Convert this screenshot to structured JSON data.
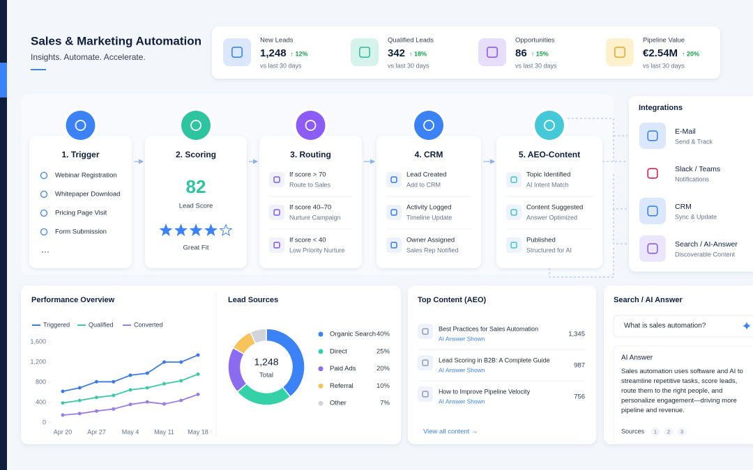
{
  "header": {
    "title": "Sales & Marketing Automation",
    "subtitle": "Insights. Automate. Accelerate."
  },
  "kpis": [
    {
      "label": "New Leads",
      "value": "1,248",
      "change": "↑ 12%",
      "note": "vs last 30 days"
    },
    {
      "label": "Qualified Leads",
      "value": "342",
      "change": "↑ 18%",
      "note": "vs last 30 days"
    },
    {
      "label": "Opportunities",
      "value": "86",
      "change": "↑ 15%",
      "note": "vs last 30 days"
    },
    {
      "label": "Pipeline Value",
      "value": "€2.54M",
      "change": "↑ 20%",
      "note": "vs last 30 days"
    }
  ],
  "pipeline": [
    {
      "title": "1. Trigger",
      "items": [
        "Webinar Registration",
        "Whitepaper Download",
        "Pricing Page Visit",
        "Form Submission"
      ]
    },
    {
      "title": "2. Scoring",
      "score": 82,
      "score_label": "Lead Score",
      "rating": 4,
      "rating_max": 5,
      "verdict": "Great Fit"
    },
    {
      "title": "3. Routing",
      "items": [
        {
          "title": "If score > 70",
          "sub": "Route to Sales"
        },
        {
          "title": "If score 40–70",
          "sub": "Nurture Campaign"
        },
        {
          "title": "If score < 40",
          "sub": "Low Priority Nurture"
        }
      ]
    },
    {
      "title": "4. CRM",
      "items": [
        {
          "title": "Lead Created",
          "sub": "Add to CRM"
        },
        {
          "title": "Activity Logged",
          "sub": "Timeline Update"
        },
        {
          "title": "Owner Assigned",
          "sub": "Sales Rep Notified"
        }
      ]
    },
    {
      "title": "5. AEO-Content",
      "items": [
        {
          "title": "Topic Identified",
          "sub": "AI Intent Match"
        },
        {
          "title": "Content Suggested",
          "sub": "Answer Optimized"
        },
        {
          "title": "Published",
          "sub": "Structured for AI"
        }
      ]
    }
  ],
  "integrations": {
    "title": "Integrations",
    "items": [
      {
        "title": "E-Mail",
        "sub": "Send & Track"
      },
      {
        "title": "Slack / Teams",
        "sub": "Notifications"
      },
      {
        "title": "CRM",
        "sub": "Sync & Update"
      },
      {
        "title": "Search / AI-Answer",
        "sub": "Discoverable Content"
      }
    ]
  },
  "chart_data": [
    {
      "type": "line",
      "title": "Performance Overview",
      "categories": [
        "Apr 20",
        null,
        "Apr 27",
        null,
        "May 4",
        null,
        "May 11",
        null,
        "May 18"
      ],
      "series": [
        {
          "name": "Triggered",
          "color": "#3b7be8",
          "values": [
            620,
            690,
            810,
            810,
            940,
            980,
            1200,
            1200,
            1340
          ]
        },
        {
          "name": "Qualified",
          "color": "#3cc9a8",
          "values": [
            390,
            440,
            500,
            540,
            650,
            690,
            770,
            830,
            960
          ]
        },
        {
          "name": "Converted",
          "color": "#9b7be8",
          "values": [
            150,
            180,
            230,
            270,
            360,
            410,
            370,
            440,
            560
          ]
        }
      ],
      "ylim": [
        0,
        1600
      ],
      "yticks": [
        0,
        400,
        800,
        {
          "value": 1200,
          "label": "1,200"
        },
        {
          "value": 1600,
          "label": "1,600"
        }
      ],
      "grid": false,
      "legend": "top"
    },
    {
      "type": "pie",
      "title": "Lead Sources",
      "donut": true,
      "categories": [
        "Organic Search",
        "Direct",
        "Paid Ads",
        "Referral",
        "Other"
      ],
      "values": [
        40,
        25,
        20,
        10,
        7
      ],
      "value_labels": [
        "40%",
        "25%",
        "20%",
        "10%",
        "7%"
      ],
      "colors": [
        "#3b82f6",
        "#34d1a8",
        "#8b6cf0",
        "#f8c25c",
        "#d1d5db"
      ],
      "center_value": "1,248",
      "center_label": "Total"
    }
  ],
  "top_content": {
    "title": "Top Content (AEO)",
    "items": [
      {
        "title": "Best Practices for Sales Automation",
        "tag": "AI Answer Shown",
        "views": "1,345"
      },
      {
        "title": "Lead Scoring in B2B: A Complete Guide",
        "tag": "AI Answer Shown",
        "views": "987"
      },
      {
        "title": "How to Improve Pipeline Velocity",
        "tag": "AI Answer Shown",
        "views": "756"
      }
    ],
    "link": "View all content →"
  },
  "search": {
    "title": "Search / AI Answer",
    "query": "What is sales automation?",
    "answer_title": "AI Answer",
    "answer": "Sales automation uses software and AI to streamline repetitive tasks, score leads, route them to the right people, and personalize engagement—driving more pipeline and revenue.",
    "sources_label": "Sources",
    "sources": [
      "1",
      "2",
      "3"
    ]
  }
}
